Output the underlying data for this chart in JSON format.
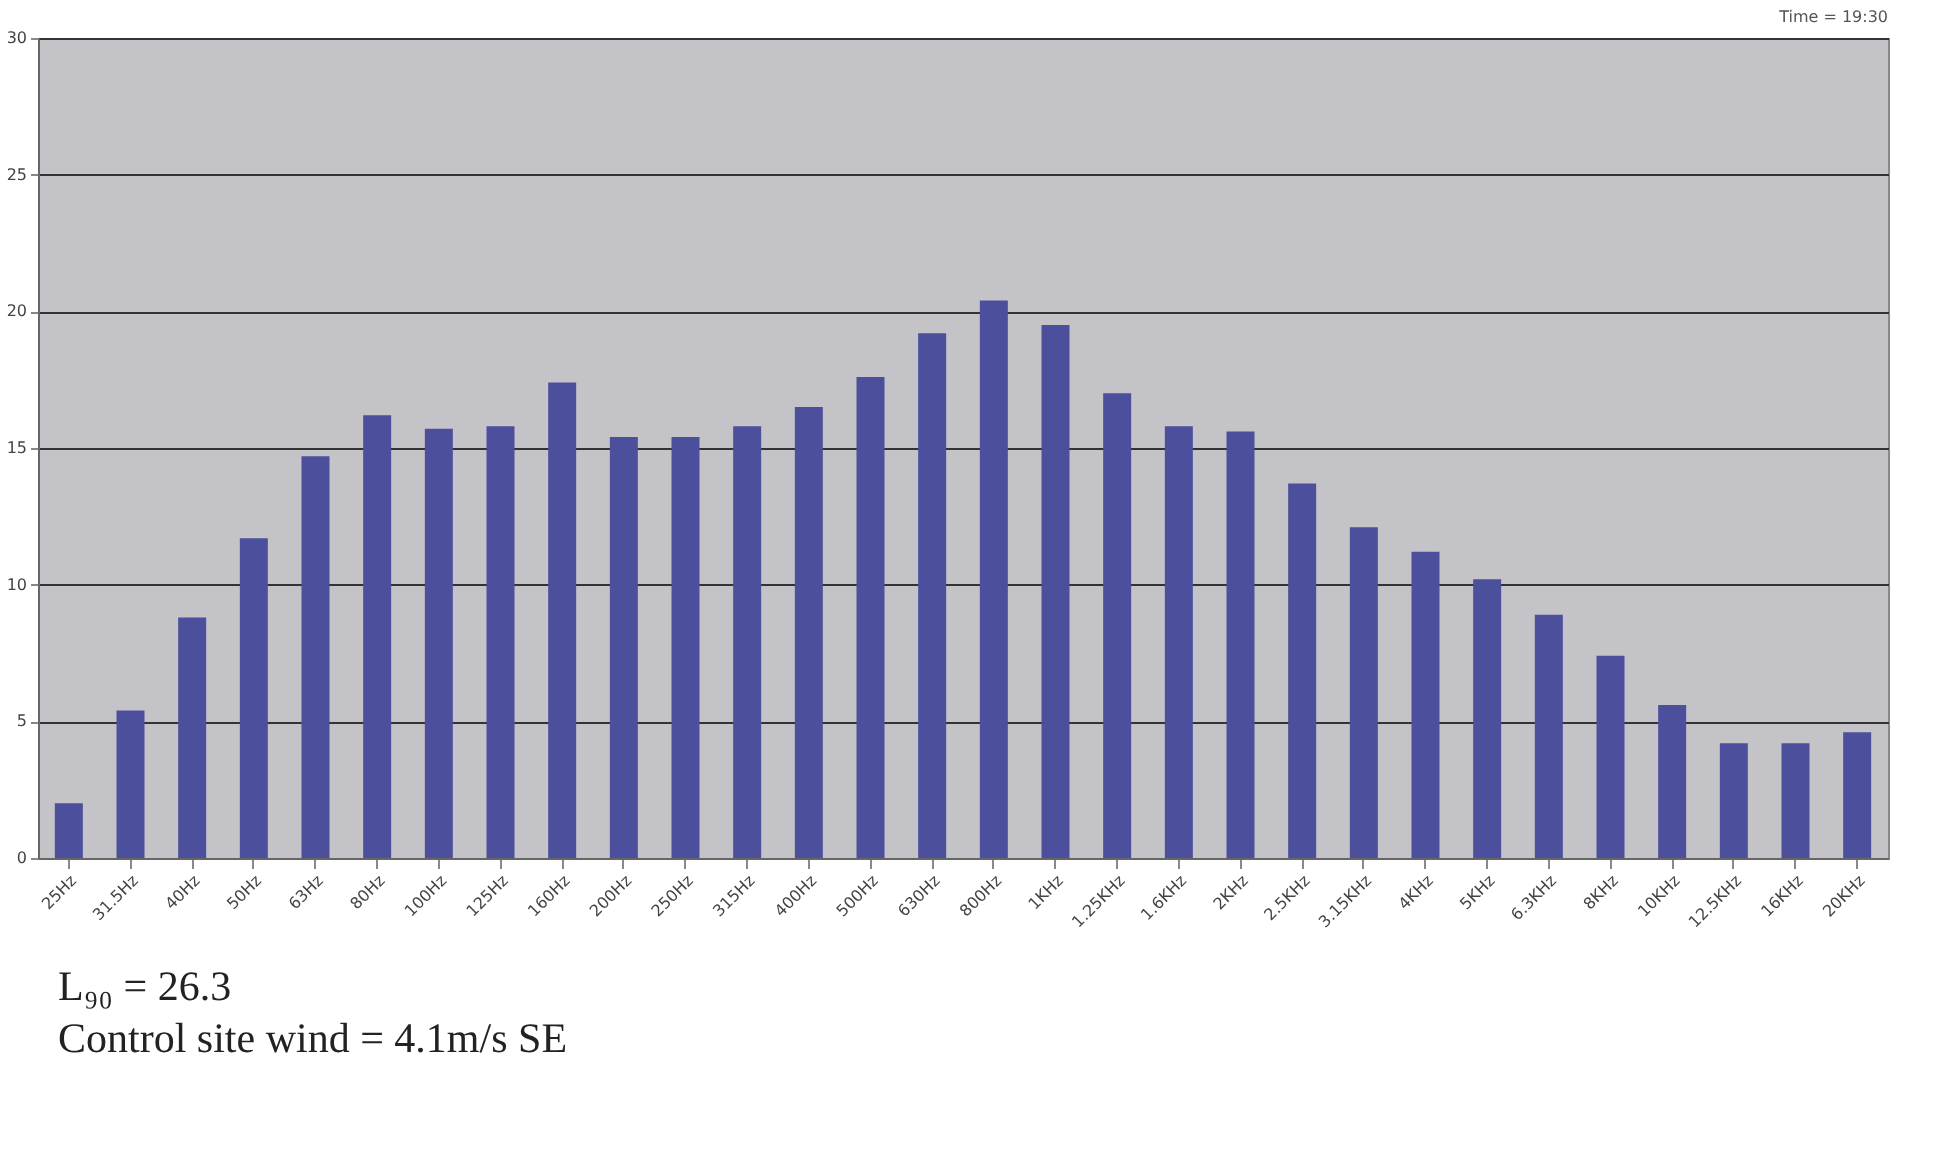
{
  "chart_data": {
    "type": "bar",
    "title": "Time = 19:30",
    "categories": [
      "25Hz",
      "31.5Hz",
      "40Hz",
      "50Hz",
      "63Hz",
      "80Hz",
      "100Hz",
      "125Hz",
      "160Hz",
      "200Hz",
      "250Hz",
      "315Hz",
      "400Hz",
      "500Hz",
      "630Hz",
      "800Hz",
      "1KHz",
      "1.25KHz",
      "1.6KHz",
      "2KHz",
      "2.5KHz",
      "3.15KHz",
      "4KHz",
      "5KHz",
      "6.3KHz",
      "8KHz",
      "10KHz",
      "12.5KHz",
      "16KHz",
      "20KHz"
    ],
    "values": [
      2.0,
      5.4,
      8.8,
      11.7,
      14.7,
      16.2,
      15.7,
      15.8,
      17.4,
      15.4,
      15.4,
      15.8,
      16.5,
      17.6,
      19.2,
      20.4,
      19.5,
      17.0,
      15.8,
      15.6,
      13.7,
      12.1,
      11.2,
      10.2,
      8.9,
      7.4,
      5.6,
      4.2,
      4.2,
      4.6
    ],
    "color": "#4b4f9c",
    "ylim": [
      0,
      30
    ],
    "yticks": [
      0,
      5,
      10,
      15,
      20,
      25,
      30
    ],
    "grid": "y",
    "annotations": [
      "L₉₀ = 26.3",
      "Control site wind = 4.1m/s SE"
    ]
  }
}
